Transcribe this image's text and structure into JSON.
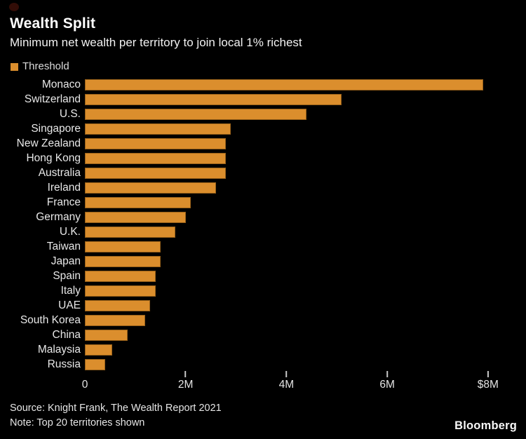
{
  "header": {
    "title": "Wealth Split",
    "subtitle": "Minimum net wealth per territory to join local 1% richest"
  },
  "legend": {
    "label": "Threshold",
    "swatch_color": "#DB8E2D"
  },
  "chart_data": {
    "type": "bar",
    "orientation": "horizontal",
    "title": "Wealth Split",
    "subtitle": "Minimum net wealth per territory to join local 1% richest",
    "series_name": "Threshold",
    "unit": "USD, millions",
    "categories": [
      "Monaco",
      "Switzerland",
      "U.S.",
      "Singapore",
      "New Zealand",
      "Hong Kong",
      "Australia",
      "Ireland",
      "France",
      "Germany",
      "U.K.",
      "Taiwan",
      "Japan",
      "Spain",
      "Italy",
      "UAE",
      "South Korea",
      "China",
      "Malaysia",
      "Russia"
    ],
    "values": [
      7.9,
      5.1,
      4.4,
      2.9,
      2.8,
      2.8,
      2.8,
      2.6,
      2.1,
      2.0,
      1.8,
      1.5,
      1.5,
      1.4,
      1.4,
      1.3,
      1.2,
      0.85,
      0.54,
      0.4
    ],
    "xlim": [
      0,
      8
    ],
    "x_ticks": [
      {
        "label": "0",
        "value": 0
      },
      {
        "label": "2M",
        "value": 2
      },
      {
        "label": "4M",
        "value": 4
      },
      {
        "label": "6M",
        "value": 6
      },
      {
        "label": "$8M",
        "value": 8
      }
    ],
    "bar_color": "#DB8E2D",
    "grid": false,
    "legend_position": "top-left",
    "background_color": "#000000"
  },
  "footer": {
    "source": "Source: Knight Frank, The Wealth Report 2021",
    "note": "Note: Top 20 territories shown",
    "brand": "Bloomberg"
  }
}
